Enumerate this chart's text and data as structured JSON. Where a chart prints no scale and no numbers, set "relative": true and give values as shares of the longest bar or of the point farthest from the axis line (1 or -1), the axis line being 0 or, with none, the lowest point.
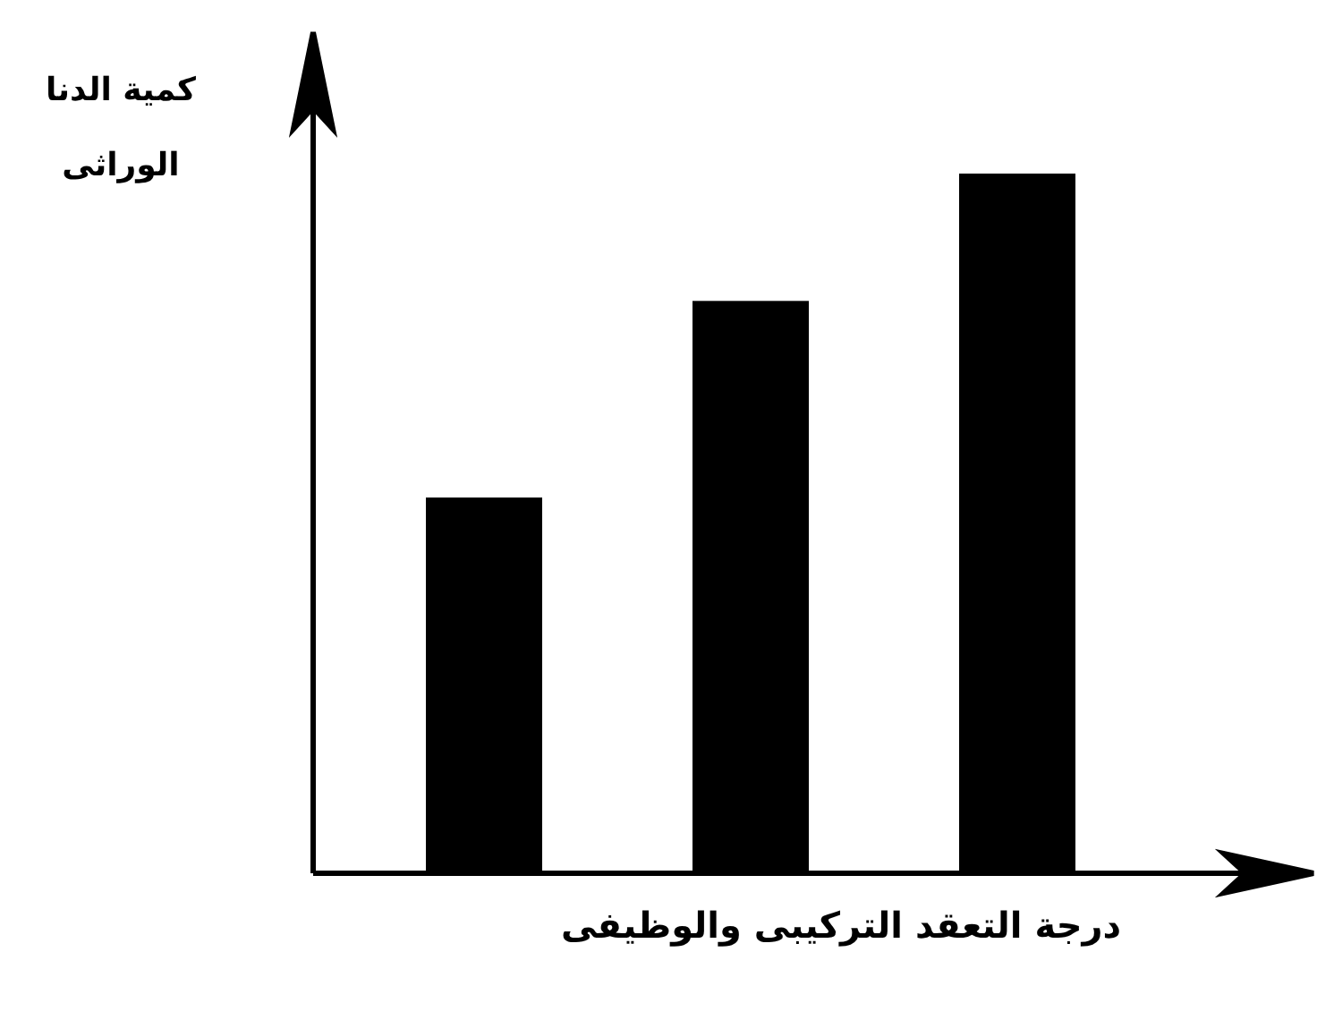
{
  "chart_data": {
    "type": "bar",
    "ylabel": "كمية الدنا الوراثى",
    "xlabel": "درجة التعقد التركيبى والوظيفى",
    "categories": [
      null,
      null,
      null
    ],
    "values": [
      0.537,
      0.818,
      1
    ],
    "color": "#000000",
    "relative": true
  }
}
